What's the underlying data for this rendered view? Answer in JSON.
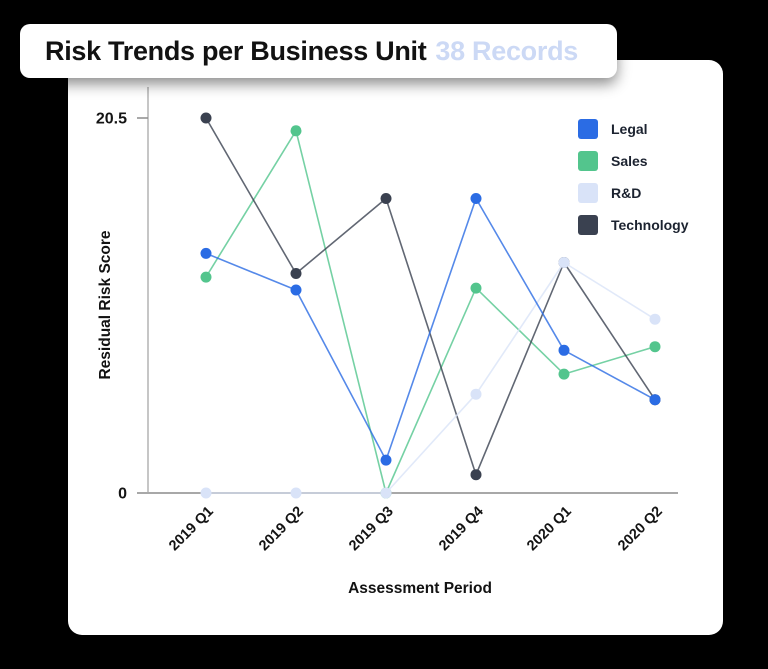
{
  "header": {
    "title": "Risk Trends per Business Unit",
    "records_badge": "38 Records"
  },
  "colors": {
    "background": "#000000",
    "card": "#ffffff",
    "records_text": "#ccd9f5",
    "title_text": "#121212",
    "axis_line": "#a8a8a8",
    "tick_text": "#141414"
  },
  "chart_data": {
    "type": "line",
    "title": "Risk Trends per Business Unit",
    "xlabel": "Assessment Period",
    "ylabel": "Residual Risk Score",
    "categories": [
      "2019 Q1",
      "2019 Q2",
      "2019 Q3",
      "2019 Q4",
      "2020 Q1",
      "2020 Q2"
    ],
    "series": [
      {
        "key": "legal",
        "name": "Legal",
        "color": "#2b6ce4",
        "values": [
          13.1,
          11.1,
          1.8,
          16.1,
          7.8,
          5.1
        ]
      },
      {
        "key": "sales",
        "name": "Sales",
        "color": "#53c58d",
        "values": [
          11.8,
          19.8,
          0,
          11.2,
          6.5,
          8.0
        ]
      },
      {
        "key": "rnd",
        "name": "R&D",
        "color": "#d9e3f8",
        "values": [
          0,
          0,
          0,
          5.4,
          12.6,
          9.5
        ]
      },
      {
        "key": "technology",
        "name": "Technology",
        "color": "#3a4150",
        "values": [
          20.5,
          12.0,
          16.1,
          1.0,
          12.6,
          5.1
        ]
      }
    ],
    "ylim": [
      0,
      20.5
    ],
    "yticks": [
      0,
      20.5
    ],
    "grid": false,
    "legend_position": "top-right"
  }
}
